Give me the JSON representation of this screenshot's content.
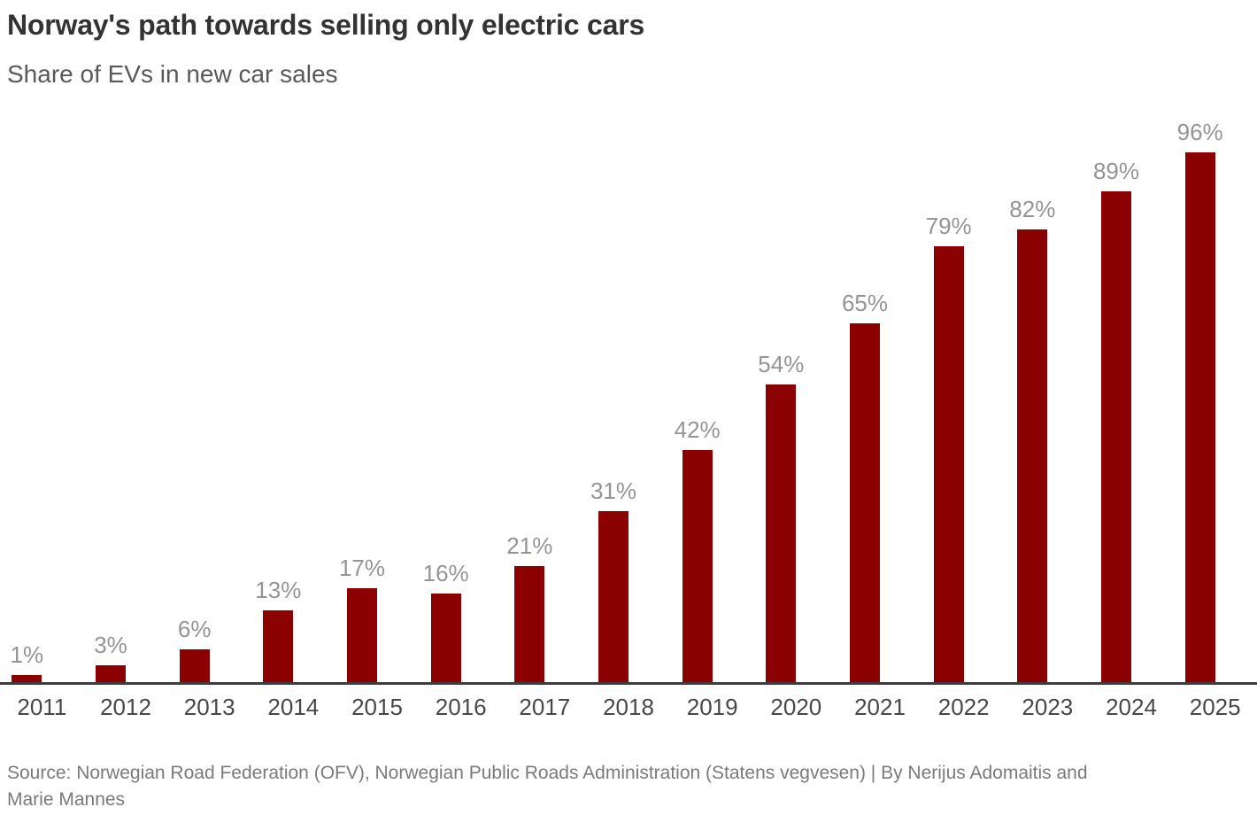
{
  "header": {
    "title": "Norway's path towards selling only electric cars",
    "subtitle": "Share of EVs in new car sales"
  },
  "chart_data": {
    "type": "bar",
    "title": "Norway's path towards selling only electric cars",
    "subtitle": "Share of EVs in new car sales",
    "categories": [
      "2011",
      "2012",
      "2013",
      "2014",
      "2015",
      "2016",
      "2017",
      "2018",
      "2019",
      "2020",
      "2021",
      "2022",
      "2023",
      "2024",
      "2025"
    ],
    "values": [
      1,
      3,
      6,
      13,
      17,
      16,
      21,
      31,
      42,
      54,
      65,
      79,
      82,
      89,
      96
    ],
    "value_labels": [
      "1%",
      "3%",
      "6%",
      "13%",
      "17%",
      "16%",
      "21%",
      "31%",
      "42%",
      "54%",
      "65%",
      "79%",
      "82%",
      "89%",
      "96%"
    ],
    "xlabel": "",
    "ylabel": "",
    "ylim": [
      0,
      100
    ],
    "unit": "%",
    "grid": false,
    "legend_position": "none",
    "data_labels": "above-bars",
    "colors": {
      "bar": "#8B0000",
      "value_label": "#949494",
      "tick_label": "#484848",
      "axis_line": "#3d3d3d",
      "title": "#333333",
      "subtitle": "#595959",
      "background": "#ffffff"
    }
  },
  "footer": {
    "source_lines": [
      "Source: Norwegian Road Federation (OFV), Norwegian Public Roads Administration (Statens vegvesen)  | By Nerijus Adomaitis and",
      "Marie Mannes"
    ]
  }
}
